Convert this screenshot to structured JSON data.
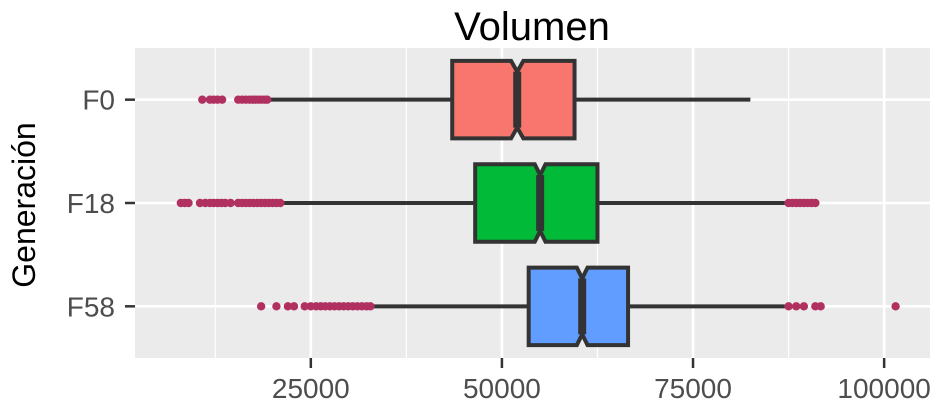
{
  "chart_data": {
    "type": "boxplot",
    "orientation": "horizontal",
    "notched": true,
    "title": "Volumen",
    "xlabel": "",
    "ylabel": "Generación",
    "xlim": [
      2000,
      106000
    ],
    "x_ticks": [
      25000,
      50000,
      75000,
      100000
    ],
    "x_tick_labels": [
      "25000",
      "50000",
      "75000",
      "100000"
    ],
    "grid": true,
    "legend": "none",
    "panel_background": "#ebebeb",
    "outlier_color": "#b03060",
    "categories": [
      "F0",
      "F18",
      "F58"
    ],
    "series": [
      {
        "category": "F0",
        "color": "#f8766d",
        "whisker_low": 19500,
        "q1": 43500,
        "median": 52000,
        "q3": 59500,
        "whisker_high": 82500,
        "notch_low": 51200,
        "notch_high": 52800,
        "outliers": [
          10800,
          11800,
          12300,
          12800,
          13400,
          15500,
          16000,
          16500,
          17000,
          17400,
          17800,
          18200,
          18600,
          19000,
          19300
        ]
      },
      {
        "category": "F18",
        "color": "#00ba38",
        "whisker_low": 21500,
        "q1": 46500,
        "median": 55000,
        "q3": 62500,
        "whisker_high": 87000,
        "notch_low": 54300,
        "notch_high": 55700,
        "outliers": [
          8000,
          8500,
          9000,
          10500,
          11200,
          11800,
          12300,
          12800,
          13300,
          13800,
          14500,
          15500,
          16000,
          16500,
          17000,
          17500,
          18000,
          18500,
          19000,
          19500,
          20000,
          20500,
          21000,
          87500,
          88000,
          88500,
          89000,
          89500,
          90000,
          90500,
          91000
        ]
      },
      {
        "category": "F58",
        "color": "#619cff",
        "whisker_low": 33000,
        "q1": 53500,
        "median": 60500,
        "q3": 66500,
        "whisker_high": 87000,
        "notch_low": 59800,
        "notch_high": 61200,
        "outliers": [
          18500,
          20500,
          22000,
          22800,
          24200,
          25000,
          25700,
          26300,
          26900,
          27500,
          28100,
          28700,
          29300,
          29900,
          30500,
          31100,
          31700,
          32300,
          32800,
          87500,
          88500,
          89500,
          91000,
          91700,
          101500
        ]
      }
    ]
  }
}
